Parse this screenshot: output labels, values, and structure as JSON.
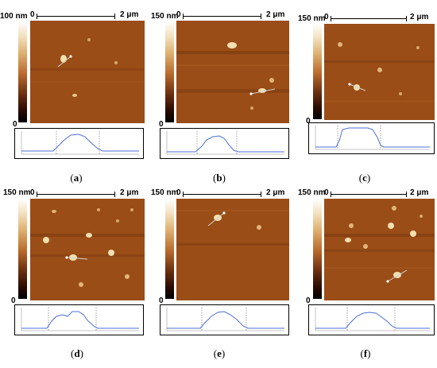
{
  "panels": [
    {
      "id": "a",
      "cbar_max": "100 nm",
      "cbar_min": "0",
      "scale_zero": "0",
      "scale_length": "2 μm",
      "caption_open": "(",
      "caption_letter": "a",
      "caption_close": ")"
    },
    {
      "id": "b",
      "cbar_max": "150 nm",
      "cbar_min": "0",
      "scale_zero": "0",
      "scale_length": "2 μm",
      "caption_open": "(",
      "caption_letter": "b",
      "caption_close": ")"
    },
    {
      "id": "c",
      "cbar_max": "150 nm",
      "cbar_min": "0",
      "scale_zero": "0",
      "scale_length": "2 μm",
      "caption_open": "(",
      "caption_letter": "c",
      "caption_close": ")"
    },
    {
      "id": "d",
      "cbar_max": "150 nm",
      "cbar_min": "0",
      "scale_zero": "0",
      "scale_length": "2 μm",
      "caption_open": "(",
      "caption_letter": "d",
      "caption_close": ")"
    },
    {
      "id": "e",
      "cbar_max": "150 nm",
      "cbar_min": "0",
      "scale_zero": "0",
      "scale_length": "2 μm",
      "caption_open": "(",
      "caption_letter": "e",
      "caption_close": ")"
    },
    {
      "id": "f",
      "cbar_max": "150 nm",
      "cbar_min": "0",
      "scale_zero": "0",
      "scale_length": "2 μm",
      "caption_open": "(",
      "caption_letter": "f",
      "caption_close": ")"
    }
  ],
  "colors": {
    "substrate": "#9a4d16",
    "particle": "#f3dfb0",
    "profile_line": "#4f6fd8",
    "marker_line": "#8a8a8a"
  }
}
